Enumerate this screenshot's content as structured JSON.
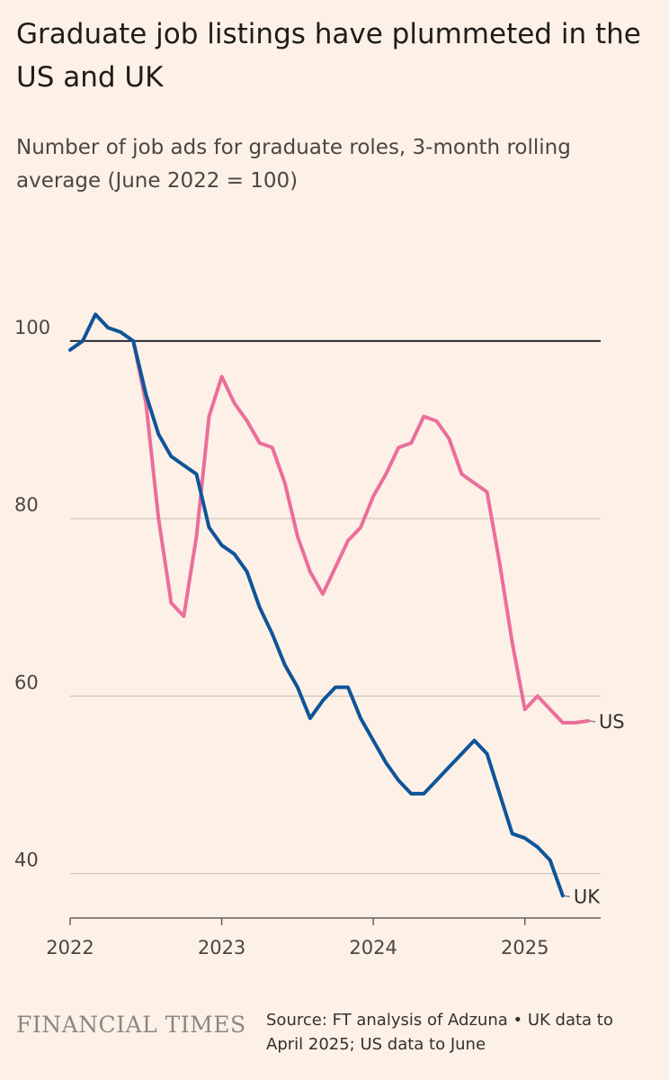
{
  "title": "Graduate job listings have plummeted in the US and UK",
  "subtitle": "Number of job ads for graduate roles, 3-month rolling average (June 2022 = 100)",
  "brand": "FINANCIAL TIMES",
  "source": "Source: FT analysis of Adzuna • UK data to April 2025; US data to June",
  "colors": {
    "background": "#fdf1e7",
    "us": "#eb6e9b",
    "uk": "#0f5499",
    "reference": "#262a33",
    "grid": "#ccc1b7"
  },
  "chart_data": {
    "type": "line",
    "x_unit": "month",
    "ylim": [
      35,
      108
    ],
    "yticks": [
      40,
      60,
      80,
      100
    ],
    "ytick_labels": [
      "40",
      "60",
      "80",
      "100"
    ],
    "xlim": [
      "2022-01",
      "2025-07"
    ],
    "xticks": [
      "2022-01",
      "2023-01",
      "2024-01",
      "2025-01"
    ],
    "xtick_labels": [
      "2022",
      "2023",
      "2024",
      "2025"
    ],
    "reference_line": 100,
    "grid": "horizontal",
    "series": [
      {
        "name": "US",
        "color": "#eb6e9b",
        "x": [
          "2022-06",
          "2022-07",
          "2022-08",
          "2022-09",
          "2022-10",
          "2022-11",
          "2022-12",
          "2023-01",
          "2023-02",
          "2023-03",
          "2023-04",
          "2023-05",
          "2023-06",
          "2023-07",
          "2023-08",
          "2023-09",
          "2023-10",
          "2023-11",
          "2023-12",
          "2024-01",
          "2024-02",
          "2024-03",
          "2024-04",
          "2024-05",
          "2024-06",
          "2024-07",
          "2024-08",
          "2024-09",
          "2024-10",
          "2024-11",
          "2024-12",
          "2025-01",
          "2025-02",
          "2025-03",
          "2025-04",
          "2025-05",
          "2025-06"
        ],
        "values": [
          100,
          93,
          80,
          70.5,
          69,
          78,
          91.5,
          96,
          93,
          91,
          88.5,
          88,
          84,
          78,
          74,
          71.5,
          74.5,
          77.5,
          79,
          82.5,
          85,
          88,
          88.5,
          91.5,
          91,
          89,
          85,
          84,
          83,
          75,
          66,
          58.5,
          60,
          58.5,
          57,
          57,
          57.2
        ]
      },
      {
        "name": "UK",
        "color": "#0f5499",
        "x": [
          "2022-01",
          "2022-02",
          "2022-03",
          "2022-04",
          "2022-05",
          "2022-06",
          "2022-07",
          "2022-08",
          "2022-09",
          "2022-10",
          "2022-11",
          "2022-12",
          "2023-01",
          "2023-02",
          "2023-03",
          "2023-04",
          "2023-05",
          "2023-06",
          "2023-07",
          "2023-08",
          "2023-09",
          "2023-10",
          "2023-11",
          "2023-12",
          "2024-01",
          "2024-02",
          "2024-03",
          "2024-04",
          "2024-05",
          "2024-06",
          "2024-07",
          "2024-08",
          "2024-09",
          "2024-10",
          "2024-11",
          "2024-12",
          "2025-01",
          "2025-02",
          "2025-03",
          "2025-04"
        ],
        "values": [
          99,
          100,
          103,
          101.5,
          101,
          100,
          94,
          89.5,
          87,
          86,
          85,
          79,
          77,
          76,
          74,
          70,
          67,
          63.5,
          61,
          57.5,
          59.5,
          61,
          61,
          57.5,
          55,
          52.5,
          50.5,
          49,
          49,
          50.5,
          52,
          53.5,
          55,
          53.5,
          49,
          44.5,
          44,
          43,
          41.5,
          37.5
        ]
      }
    ]
  }
}
